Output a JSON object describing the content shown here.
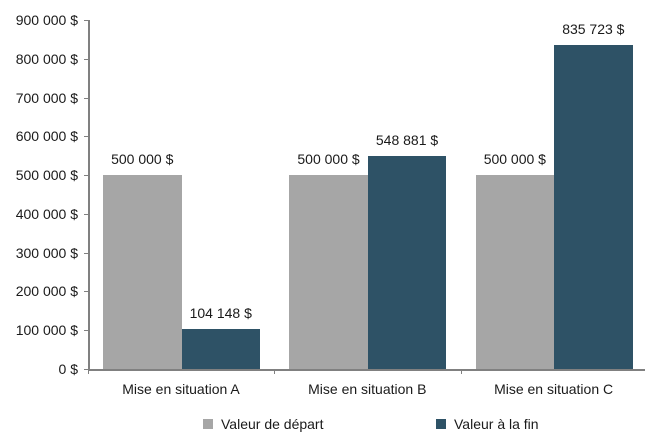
{
  "chart_data": {
    "type": "bar",
    "title": "",
    "xlabel": "",
    "ylabel": "",
    "ylim": [
      0,
      900000
    ],
    "yticks": [
      0,
      100000,
      200000,
      300000,
      400000,
      500000,
      600000,
      700000,
      800000,
      900000
    ],
    "ytick_labels": [
      "0 $",
      "100 000 $",
      "200 000 $",
      "300 000 $",
      "400 000 $",
      "500 000 $",
      "600 000 $",
      "700 000 $",
      "800 000 $",
      "900 000 $"
    ],
    "categories": [
      "Mise en situation A",
      "Mise en situation B",
      "Mise en situation C"
    ],
    "series": [
      {
        "name": "Valeur de départ",
        "color": "#a6a6a6",
        "values": [
          500000,
          500000,
          500000
        ],
        "labels": [
          "500 000 $",
          "500 000 $",
          "500 000 $"
        ]
      },
      {
        "name": "Valeur à la fin",
        "color": "#2e5266",
        "values": [
          104148,
          548881,
          835723
        ],
        "labels": [
          "104 148 $",
          "548 881 $",
          "835 723 $"
        ]
      }
    ],
    "grid": false,
    "legend_position": "bottom"
  },
  "legend": {
    "items": [
      {
        "label": "Valeur de départ",
        "color": "#a6a6a6"
      },
      {
        "label": "Valeur à la fin",
        "color": "#2e5266"
      }
    ]
  }
}
